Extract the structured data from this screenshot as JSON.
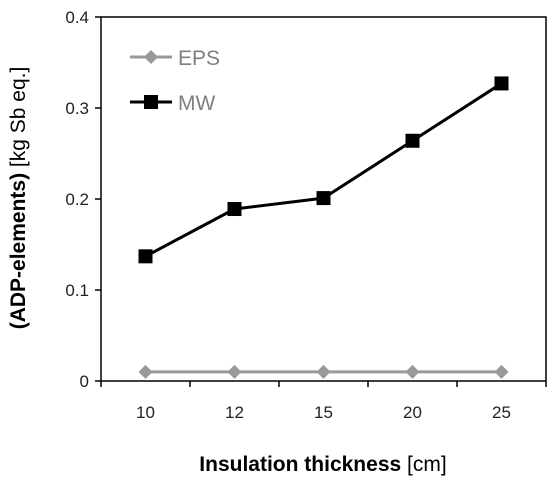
{
  "chart_data": {
    "type": "line",
    "categories": [
      "10",
      "12",
      "15",
      "20",
      "25"
    ],
    "series": [
      {
        "name": "EPS",
        "values": [
          0.01,
          0.01,
          0.01,
          0.01,
          0.01
        ],
        "color": "#999999",
        "marker": "diamond"
      },
      {
        "name": "MW",
        "values": [
          0.137,
          0.189,
          0.201,
          0.264,
          0.327
        ],
        "color": "#000000",
        "marker": "square"
      }
    ],
    "xlabel": {
      "bold": "Insulation thickness",
      "normal": " [cm]"
    },
    "ylabel": {
      "bold": "(ADP-elements)",
      "normal": " [kg Sb eq.]"
    },
    "ylim": [
      0,
      0.4
    ],
    "yticks": [
      "0",
      "0.1",
      "0.2",
      "0.3",
      "0.4"
    ],
    "grid": false,
    "legend": "top-left"
  }
}
